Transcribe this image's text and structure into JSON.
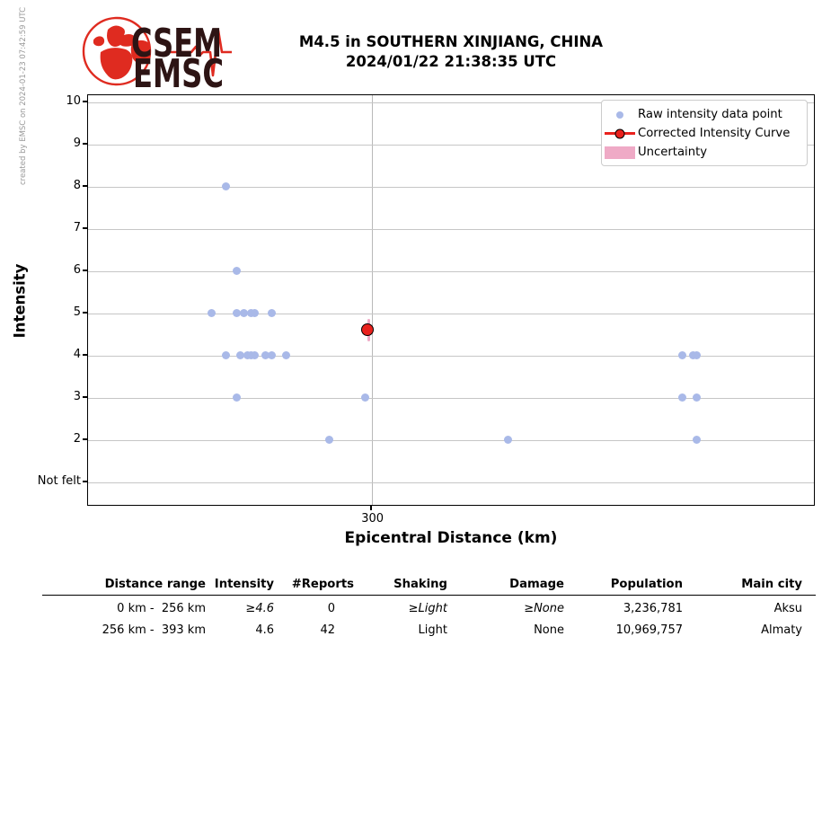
{
  "page": {
    "credit": "created by EMSC on 2024-01-23 07:42:59 UTC",
    "title_line1": "M4.5 in SOUTHERN XINJIANG, CHINA",
    "title_line2": "2024/01/22 21:38:35 UTC"
  },
  "logo": {
    "top_text": "CSEM",
    "bottom_text": "EMSC",
    "red": "#df2b20",
    "dark": "#2d1414"
  },
  "chart_data": {
    "type": "scatter",
    "title": "M4.5 in SOUTHERN XINJIANG, CHINA 2024/01/22 21:38:35 UTC",
    "xlabel": "Epicentral Distance (km)",
    "ylabel": "Intensity",
    "xlim": [
      220,
      424
    ],
    "ylim": [
      0.45,
      10.2
    ],
    "grid": true,
    "xticks": [
      {
        "value": 300,
        "label": "300"
      }
    ],
    "yticks": [
      {
        "value": 10,
        "label": "10"
      },
      {
        "value": 9,
        "label": "9"
      },
      {
        "value": 8,
        "label": "8"
      },
      {
        "value": 7,
        "label": "7"
      },
      {
        "value": 6,
        "label": "6"
      },
      {
        "value": 5,
        "label": "5"
      },
      {
        "value": 4,
        "label": "4"
      },
      {
        "value": 3,
        "label": "3"
      },
      {
        "value": 2,
        "label": "2"
      },
      {
        "value": 1,
        "label": "Not felt"
      }
    ],
    "legend_position": "upper right",
    "series": [
      {
        "name": "Raw intensity data point",
        "marker": "dot",
        "color": "#a9b9e8",
        "points": [
          {
            "distance_km": 259,
            "intensity": 8
          },
          {
            "distance_km": 262,
            "intensity": 6
          },
          {
            "distance_km": 255,
            "intensity": 5
          },
          {
            "distance_km": 262,
            "intensity": 5
          },
          {
            "distance_km": 264,
            "intensity": 5
          },
          {
            "distance_km": 266,
            "intensity": 5
          },
          {
            "distance_km": 267,
            "intensity": 5
          },
          {
            "distance_km": 272,
            "intensity": 5
          },
          {
            "distance_km": 259,
            "intensity": 4
          },
          {
            "distance_km": 263,
            "intensity": 4
          },
          {
            "distance_km": 265,
            "intensity": 4
          },
          {
            "distance_km": 266,
            "intensity": 4
          },
          {
            "distance_km": 267,
            "intensity": 4
          },
          {
            "distance_km": 270,
            "intensity": 4
          },
          {
            "distance_km": 272,
            "intensity": 4
          },
          {
            "distance_km": 276,
            "intensity": 4
          },
          {
            "distance_km": 387,
            "intensity": 4
          },
          {
            "distance_km": 390,
            "intensity": 4
          },
          {
            "distance_km": 391,
            "intensity": 4
          },
          {
            "distance_km": 262,
            "intensity": 3
          },
          {
            "distance_km": 298,
            "intensity": 3
          },
          {
            "distance_km": 387,
            "intensity": 3
          },
          {
            "distance_km": 391,
            "intensity": 3
          },
          {
            "distance_km": 288,
            "intensity": 2
          },
          {
            "distance_km": 338,
            "intensity": 2
          },
          {
            "distance_km": 391,
            "intensity": 2
          }
        ]
      },
      {
        "name": "Corrected Intensity Curve",
        "marker": "circle-line",
        "color": "#e9211d",
        "edge_color": "#000000",
        "points": [
          {
            "distance_km": 299,
            "intensity": 4.6,
            "uncertainty": 0.27
          }
        ]
      },
      {
        "name": "Uncertainty",
        "marker": "band",
        "color": "#efaac6",
        "points": []
      }
    ]
  },
  "table": {
    "headers": [
      "Distance range",
      "Intensity",
      "#Reports",
      "Shaking",
      "Damage",
      "Population",
      "Main city"
    ],
    "rows": [
      [
        "0 km -  256 km",
        "≥4.6",
        "0",
        "≥Light",
        "≥None",
        "3,236,781",
        "Aksu"
      ],
      [
        "256 km -  393 km",
        "4.6",
        "42",
        "Light",
        "None",
        "10,969,757",
        "Almaty"
      ]
    ]
  },
  "colors": {
    "grid": "#c6c6c6",
    "axis": "#000000",
    "credit_text": "#999999"
  }
}
